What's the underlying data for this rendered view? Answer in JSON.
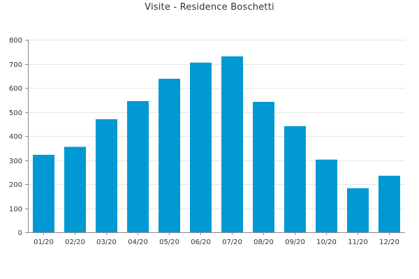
{
  "chart_data": {
    "type": "bar",
    "title": "Visite - Residence Boschetti",
    "xlabel": "",
    "ylabel": "",
    "categories": [
      "01/20",
      "02/20",
      "03/20",
      "04/20",
      "05/20",
      "06/20",
      "07/20",
      "08/20",
      "09/20",
      "10/20",
      "11/20",
      "12/20"
    ],
    "values": [
      322,
      355,
      470,
      545,
      638,
      705,
      731,
      542,
      441,
      302,
      183,
      235
    ],
    "ylim": [
      0,
      800
    ],
    "yticks": [
      0,
      100,
      200,
      300,
      400,
      500,
      600,
      700,
      800
    ],
    "grid": true,
    "colors": {
      "bar": "#0099d4",
      "grid": "#e5e5e5",
      "axis": "#888888",
      "text": "#333333"
    }
  }
}
